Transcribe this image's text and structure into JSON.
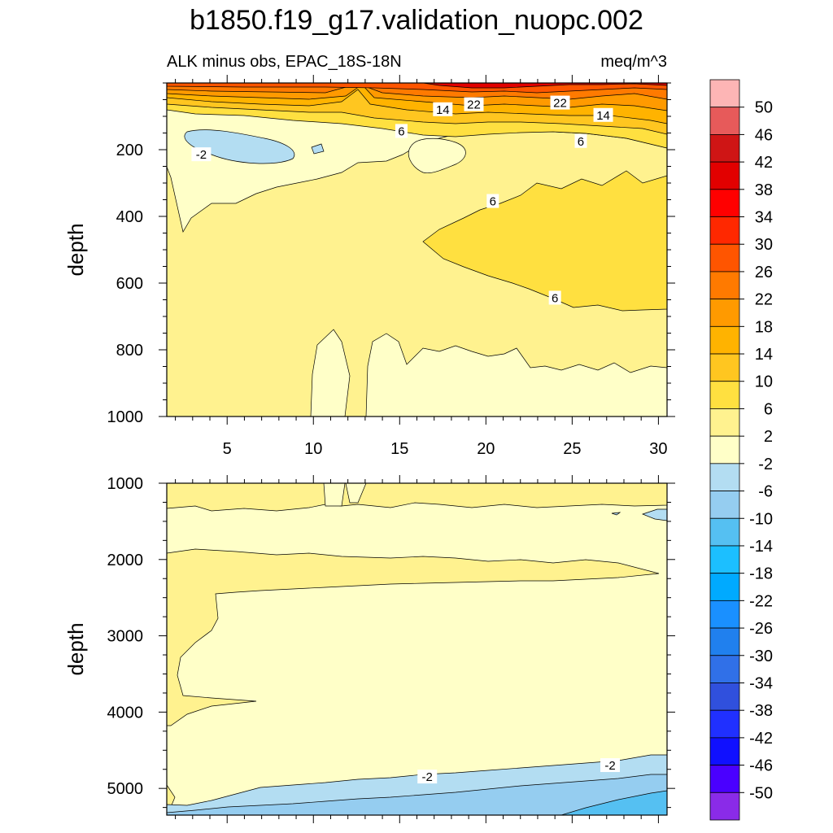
{
  "title": "b1850.f19_g17.validation_nuopc.002",
  "chart_data": {
    "type": "contour",
    "title": "b1850.f19_g17.validation_nuopc.002",
    "subtitle_left": "ALK minus obs, EPAC_18S-18N",
    "subtitle_right": "meq/m^3",
    "ylabel": "depth",
    "x_ticks": [
      "5",
      "10",
      "15",
      "20",
      "25",
      "30"
    ],
    "x_values": [
      5,
      10,
      15,
      20,
      25,
      30
    ],
    "xlim": [
      1.5,
      30.5
    ],
    "grid": false,
    "panels": [
      {
        "name": "upper",
        "ylim": [
          0,
          1000
        ],
        "y_ticks": [
          "200",
          "400",
          "600",
          "800",
          "1000"
        ],
        "y_values": [
          200,
          400,
          600,
          800,
          1000
        ],
        "contour_labels": [
          {
            "text": "-2",
            "x": 3.5,
            "y": 215
          },
          {
            "text": "14",
            "x": 17.5,
            "y": 80
          },
          {
            "text": "22",
            "x": 19.3,
            "y": 65
          },
          {
            "text": "22",
            "x": 24.3,
            "y": 60
          },
          {
            "text": "6",
            "x": 15.1,
            "y": 145
          },
          {
            "text": "14",
            "x": 26.8,
            "y": 97
          },
          {
            "text": "6",
            "x": 25.5,
            "y": 175
          },
          {
            "text": "6",
            "x": 20.4,
            "y": 355
          },
          {
            "text": "6",
            "x": 24.0,
            "y": 645
          }
        ]
      },
      {
        "name": "lower",
        "ylim": [
          1000,
          5350
        ],
        "y_ticks": [
          "1000",
          "2000",
          "3000",
          "4000",
          "5000"
        ],
        "y_values": [
          1000,
          2000,
          3000,
          4000,
          5000
        ],
        "contour_labels": [
          {
            "text": "-2",
            "x": 16.6,
            "y": 4850
          },
          {
            "text": "-2",
            "x": 27.2,
            "y": 4700
          }
        ]
      }
    ],
    "colorbar": {
      "labels": [
        "50",
        "46",
        "42",
        "38",
        "34",
        "30",
        "26",
        "22",
        "18",
        "14",
        "10",
        "6",
        "2",
        "-2",
        "-6",
        "-10",
        "-14",
        "-18",
        "-22",
        "-26",
        "-30",
        "-34",
        "-38",
        "-42",
        "-46",
        "-50"
      ],
      "colors": [
        "#fdb5b5",
        "#e75a5a",
        "#cf1515",
        "#e20000",
        "#ff0000",
        "#ff2800",
        "#ff5500",
        "#ff7a00",
        "#ff9a00",
        "#ffb300",
        "#ffc620",
        "#ffe040",
        "#fff28f",
        "#ffffc8",
        "#b3ddf2",
        "#95cdf0",
        "#55c0f2",
        "#1cbfff",
        "#00aaff",
        "#1a90ff",
        "#2080ee",
        "#3070e8",
        "#3050dd",
        "#2030ff",
        "#1010ff",
        "#4a00ff",
        "#8a2be8"
      ]
    }
  }
}
